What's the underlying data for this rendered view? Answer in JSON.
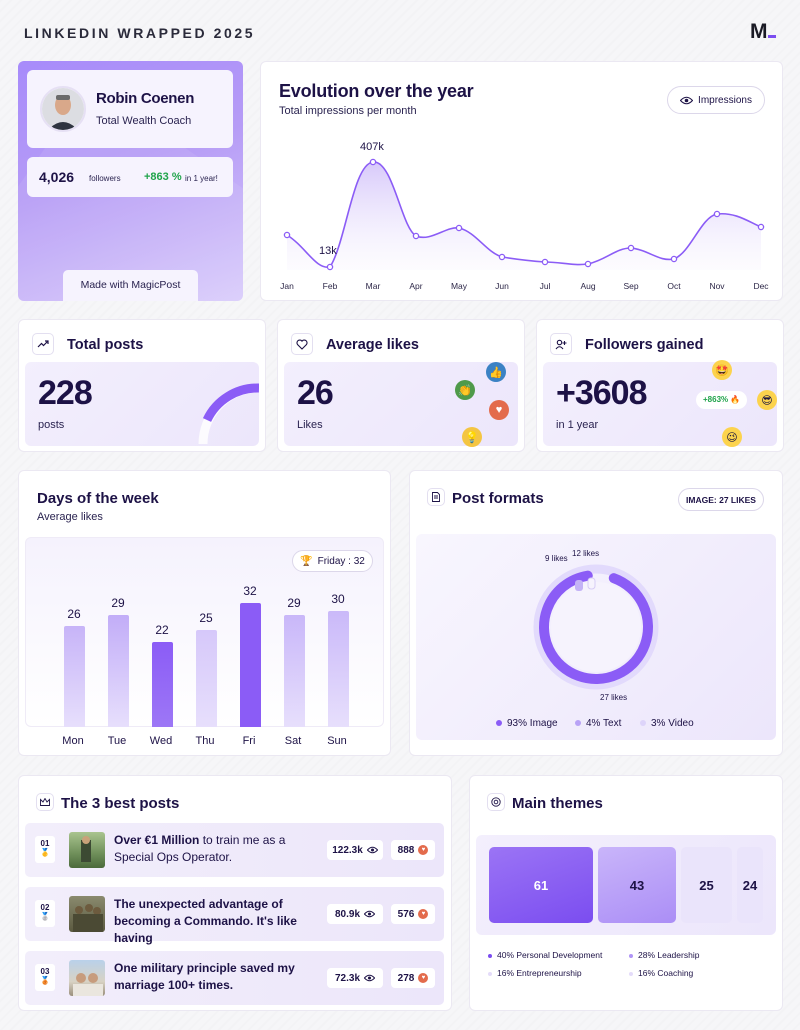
{
  "header": {
    "title": "LINKEDIN WRAPPED 2025",
    "logo": "M"
  },
  "profile": {
    "name": "Robin Coenen",
    "role": "Total Wealth Coach",
    "followers_value": "4,026",
    "followers_label": "followers",
    "growth": "+863 %",
    "growth_label": "in 1 year!",
    "made_with": "Made with MagicPost"
  },
  "evolution": {
    "title": "Evolution over the year",
    "subtitle": "Total impressions per month",
    "toggle_label": "Impressions",
    "peak_label": "407k",
    "low_label": "13k",
    "months": [
      "Jan",
      "Feb",
      "Mar",
      "Apr",
      "May",
      "Jun",
      "Jul",
      "Aug",
      "Sep",
      "Oct",
      "Nov",
      "Dec"
    ]
  },
  "total_posts": {
    "title": "Total posts",
    "value": "228",
    "label": "posts"
  },
  "average_likes": {
    "title": "Average likes",
    "value": "26",
    "label": "Likes"
  },
  "followers_gained": {
    "title": "Followers gained",
    "value": "+3608",
    "label": "in 1 year",
    "badge": "+863% 🔥"
  },
  "days": {
    "title": "Days of the week",
    "subtitle": "Average likes",
    "best_label": "Friday : 32",
    "items": [
      {
        "day": "Mon",
        "value": "26"
      },
      {
        "day": "Tue",
        "value": "29"
      },
      {
        "day": "Wed",
        "value": "22"
      },
      {
        "day": "Thu",
        "value": "25"
      },
      {
        "day": "Fri",
        "value": "32"
      },
      {
        "day": "Sat",
        "value": "29"
      },
      {
        "day": "Sun",
        "value": "30"
      }
    ]
  },
  "formats": {
    "title": "Post formats",
    "badge": "IMAGE: 27 LIKES",
    "label_video": "9 likes",
    "label_text": "12 likes",
    "label_image": "27 likes",
    "legend": [
      "93% Image",
      "4% Text",
      "3% Video"
    ]
  },
  "best_posts": {
    "title": "The 3 best posts",
    "items": [
      {
        "rank": "01",
        "medal": "🥇",
        "bold": "Over €1 Million",
        "text": " to train me as a Special Ops Operator.",
        "views": "122.3k",
        "likes": "888"
      },
      {
        "rank": "02",
        "medal": "🥈",
        "bold": "",
        "text": "The unexpected advantage of becoming a Commando. It's like having",
        "views": "80.9k",
        "likes": "576"
      },
      {
        "rank": "03",
        "medal": "🥉",
        "bold": "",
        "text": "One military principle saved my marriage 100+ times.",
        "views": "72.3k",
        "likes": "278"
      }
    ]
  },
  "themes": {
    "title": "Main themes",
    "tiles": [
      "61",
      "43",
      "25",
      "24"
    ],
    "legend": [
      "40% Personal Development",
      "28% Leadership",
      "16% Entrepreneurship",
      "16% Coaching"
    ]
  },
  "colors": {
    "accent": "#7b4df0",
    "text": "#1d1246",
    "green": "#1fa34a"
  }
}
